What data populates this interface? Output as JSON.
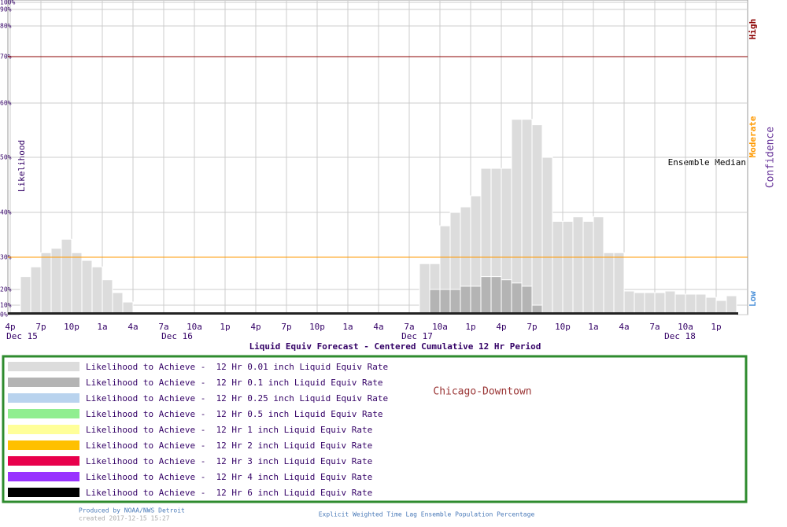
{
  "chart_data": {
    "type": "bar",
    "title": "Liquid Equiv Forecast - Centered Cumulative 12 Hr Period",
    "y_label": "Likelihood",
    "confidence_label": "Confidence",
    "median_label": "Ensemble Median",
    "thresholds": [
      {
        "value": 70,
        "label": "High",
        "color": "#8b0000"
      },
      {
        "value": 30,
        "label": "Moderate",
        "color": "#ff9900"
      },
      {
        "value": 10,
        "label": "Low",
        "color": "#4a90d9"
      }
    ],
    "location": "Chicago-Downtown",
    "x_tick_labels": [
      "4p",
      "7p",
      "10p",
      "1a",
      "4a",
      "7a",
      "10a",
      "1p",
      "4p",
      "7p",
      "10p",
      "1a",
      "4a",
      "7a",
      "10a",
      "1p",
      "4p",
      "7p",
      "10p",
      "1a",
      "4a",
      "7a",
      "10a",
      "1p"
    ],
    "date_labels": [
      "Dec 15",
      "Dec 16",
      "Dec 17",
      "Dec 18"
    ],
    "ylim": [
      0,
      100
    ],
    "yticks": [
      {
        "value": 0,
        "label": "0%"
      },
      {
        "value": 10,
        "label": "10%"
      },
      {
        "value": 20,
        "label": "20%"
      },
      {
        "value": 30,
        "label": "30%"
      },
      {
        "value": 40,
        "label": "40%"
      },
      {
        "value": 50,
        "label": "50%"
      },
      {
        "value": 60,
        "label": "60%"
      },
      {
        "value": 70,
        "label": "70%"
      },
      {
        "value": 80,
        "label": "80%"
      },
      {
        "value": 90,
        "label": "90%"
      },
      {
        "value": 100,
        "label": "100%"
      }
    ],
    "grid": true,
    "series": [
      {
        "name": "Likelihood to Achieve -  12 Hr 0.01 inch Liquid Equiv Rate",
        "color": "#dcdcdc",
        "values": [
          24,
          27,
          31,
          32,
          34,
          31,
          29,
          27,
          23,
          18,
          12,
          1,
          1,
          1,
          1,
          1,
          1,
          1,
          1,
          1,
          1,
          1,
          1,
          1,
          1,
          1,
          1,
          1,
          1,
          1,
          1,
          1,
          1,
          1,
          1,
          1,
          1,
          1,
          1,
          28,
          28,
          37,
          40,
          41,
          43,
          48,
          48,
          48,
          57,
          57,
          56,
          50,
          38,
          38,
          39,
          38,
          39,
          31,
          31,
          19,
          18,
          18,
          18,
          19,
          17,
          17,
          17,
          15,
          13,
          16
        ]
      },
      {
        "name": "Likelihood to Achieve -  12 Hr 0.1 inch Liquid Equiv Rate",
        "color": "#b4b4b4",
        "values": [
          0,
          0,
          0,
          0,
          0,
          0,
          0,
          0,
          0,
          0,
          0,
          0,
          0,
          0,
          0,
          0,
          0,
          0,
          0,
          0,
          0,
          0,
          0,
          0,
          0,
          0,
          0,
          0,
          0,
          0,
          0,
          0,
          0,
          0,
          0,
          0,
          0,
          0,
          0,
          0,
          20,
          20,
          20,
          21,
          21,
          24,
          24,
          23,
          22,
          21,
          10,
          0,
          0,
          0,
          0,
          0,
          0,
          0,
          0,
          0,
          0,
          0,
          0,
          0,
          0,
          0,
          0,
          0,
          0,
          0
        ]
      },
      {
        "name": "Likelihood to Achieve -  12 Hr 0.25 inch Liquid Equiv Rate",
        "color": "#b9d3ee"
      },
      {
        "name": "Likelihood to Achieve -  12 Hr 0.5 inch Liquid Equiv Rate",
        "color": "#90ee90"
      },
      {
        "name": "Likelihood to Achieve -  12 Hr 1 inch Liquid Equiv Rate",
        "color": "#ffff99"
      },
      {
        "name": "Likelihood to Achieve -  12 Hr 2 inch Liquid Equiv Rate",
        "color": "#ffc000"
      },
      {
        "name": "Likelihood to Achieve -  12 Hr 3 inch Liquid Equiv Rate",
        "color": "#e8004c"
      },
      {
        "name": "Likelihood to Achieve -  12 Hr 4 inch Liquid Equiv Rate",
        "color": "#9933ff"
      },
      {
        "name": "Likelihood to Achieve -  12 Hr 6 inch Liquid Equiv Rate",
        "color": "#000000"
      }
    ]
  },
  "footer": {
    "producer": "Produced by NOAA/NWS Detroit",
    "created": "created 2017-12-15 15:27",
    "note": "Explicit Weighted Time Lag Ensemble Population Percentage"
  }
}
